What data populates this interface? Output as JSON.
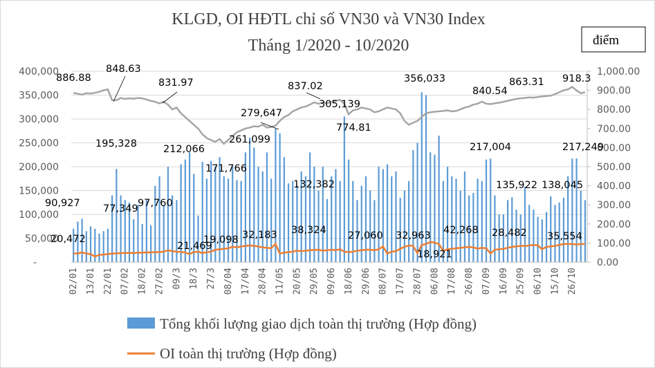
{
  "chart_data": {
    "type": "bar+line",
    "title": "KLGD, OI HĐTL chỉ số VN30 và VN30 Index",
    "subtitle": "Tháng 1/2020 - 10/2020",
    "right_axis_unit": "điểm",
    "left_ylim": [
      0,
      400000
    ],
    "right_ylim": [
      0,
      1000
    ],
    "left_ticks": [
      "-",
      "50,000",
      "100,000",
      "150,000",
      "200,000",
      "250,000",
      "300,000",
      "350,000",
      "400,000"
    ],
    "right_ticks": [
      "0.00",
      "100.00",
      "200.00",
      "300.00",
      "400.00",
      "500.00",
      "600.00",
      "700.00",
      "800.00",
      "900.00",
      "1,000.00"
    ],
    "grid": true,
    "legend_placement": "bottom",
    "x_tick_labels": [
      "02/01",
      "13/01",
      "22/01",
      "07/02",
      "18/02",
      "27/02",
      "09/3",
      "18/3",
      "27/3",
      "08/04",
      "17/04",
      "28/04",
      "11/05",
      "20/05",
      "29/05",
      "09/06",
      "18/06",
      "29/06",
      "08/07",
      "17/07",
      "28/07",
      "06/08",
      "17/08",
      "26/08",
      "07/09",
      "16/09",
      "25/09",
      "06/10",
      "15/10",
      "26/10"
    ],
    "series": [
      {
        "name": "Tổng khối lượng giao dịch toàn thị trường (Hợp đồng)",
        "type": "bar",
        "axis": "left",
        "color": "#5b9bd5",
        "values": [
          70000,
          85000,
          90927,
          65000,
          75000,
          70000,
          60000,
          65000,
          70000,
          140000,
          195328,
          140000,
          130000,
          125000,
          90000,
          120000,
          80000,
          130000,
          77349,
          160000,
          180000,
          120000,
          200000,
          140000,
          130000,
          205000,
          215000,
          230000,
          185000,
          97760,
          210000,
          175000,
          212066,
          200000,
          220000,
          180000,
          175000,
          200000,
          171766,
          170000,
          230000,
          261099,
          240000,
          200000,
          190000,
          230000,
          175000,
          279647,
          270000,
          220000,
          165000,
          170000,
          160000,
          190000,
          180000,
          230000,
          200000,
          150000,
          200000,
          132382,
          180000,
          195000,
          170000,
          305139,
          215000,
          170000,
          130000,
          160000,
          180000,
          150000,
          130000,
          200000,
          195000,
          205000,
          180000,
          190000,
          135000,
          150000,
          170000,
          235000,
          250000,
          356033,
          350000,
          230000,
          225000,
          265000,
          170000,
          200000,
          180000,
          175000,
          150000,
          190000,
          140000,
          145000,
          175000,
          170000,
          215000,
          217004,
          140000,
          100000,
          100000,
          130000,
          135922,
          110000,
          100000,
          158000,
          120000,
          110000,
          95000,
          90000,
          105000,
          138045,
          120000,
          125000,
          135000,
          180000,
          217004,
          217249,
          150000,
          130000
        ]
      },
      {
        "name": "OI toàn thị trường (Hợp đồng)",
        "type": "line",
        "axis": "left",
        "color": "#ed7d31",
        "values": [
          18000,
          18500,
          20472,
          18000,
          17000,
          12000,
          15000,
          16000,
          17000,
          18000,
          18500,
          19000,
          19000,
          19500,
          19000,
          20000,
          20000,
          20500,
          20500,
          21000,
          21000,
          22000,
          25000,
          23000,
          22000,
          21469,
          20000,
          17000,
          21000,
          22000,
          19098,
          21000,
          22000,
          26000,
          27000,
          28000,
          29000,
          32183,
          31000,
          33000,
          34000,
          35000,
          34000,
          33000,
          31000,
          30000,
          29000,
          38324,
          18000,
          20000,
          21000,
          22000,
          24000,
          23000,
          24000,
          25000,
          25500,
          26000,
          24000,
          25000,
          26000,
          25000,
          27060,
          22000,
          21000,
          22000,
          24000,
          25000,
          26000,
          26000,
          25000,
          27000,
          32963,
          18000,
          22000,
          23000,
          28000,
          32000,
          35000,
          34000,
          18921,
          36000,
          38000,
          42268,
          41000,
          38000,
          24000,
          27000,
          28000,
          29000,
          30000,
          31000,
          32000,
          31000,
          28482,
          30000,
          29000,
          18000,
          26000,
          27000,
          28000,
          30000,
          32000,
          33000,
          34000,
          34000,
          35000,
          36000,
          35554,
          27000,
          32000,
          33000,
          34000,
          36000,
          38000,
          38000,
          38000,
          37000,
          38000,
          38000
        ]
      },
      {
        "name": "VN30 Index",
        "type": "line",
        "axis": "right",
        "color": "#a5a5a5",
        "values": [
          886.88,
          882,
          878,
          885,
          883,
          887,
          892,
          900,
          905,
          848.63,
          848,
          860,
          855,
          858,
          856,
          860,
          858,
          852,
          845,
          840,
          831.97,
          840,
          825,
          800,
          810,
          780,
          760,
          740,
          720,
          700,
          670,
          650,
          640,
          630,
          645,
          620,
          640,
          660,
          680,
          690,
          700,
          705,
          712,
          710,
          720,
          705,
          708,
          715,
          740,
          760,
          770,
          790,
          800,
          810,
          815,
          825,
          837.02,
          830,
          835,
          832,
          840,
          845,
          850,
          830,
          774.81,
          795,
          800,
          810,
          805,
          800,
          785,
          790,
          800,
          810,
          805,
          800,
          780,
          740,
          720,
          730,
          740,
          760,
          780,
          785,
          788,
          790,
          792,
          795,
          790,
          792,
          800,
          810,
          815,
          825,
          830,
          840.54,
          830,
          828,
          832,
          835,
          840,
          845,
          850,
          855,
          858,
          860,
          863.31,
          862,
          865,
          868,
          870,
          872,
          880,
          890,
          900,
          905,
          918.3,
          900,
          885,
          890
        ]
      }
    ],
    "annotations": [
      "886.88",
      "848.63",
      "831.97",
      "212,066",
      "279,647",
      "261,099",
      "837.02",
      "305,139",
      "774.81",
      "356,033",
      "840.54",
      "863.31",
      "918.3",
      "195,328",
      "171,766",
      "132,382",
      "217,004",
      "217,249",
      "90,927",
      "77,349",
      "97,760",
      "135,922",
      "138,045",
      "20,472",
      "21,469",
      "19,098",
      "32,183",
      "38,324",
      "27,060",
      "32,963",
      "18,921",
      "42,268",
      "28,482",
      "35,554"
    ]
  }
}
